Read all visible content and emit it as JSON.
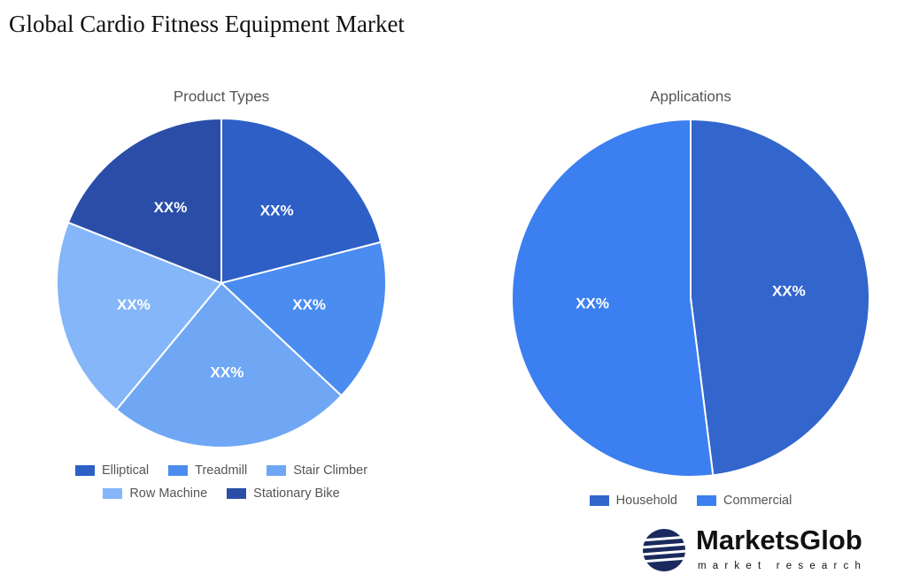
{
  "header": {
    "title": "Global Cardio Fitness Equipment Market"
  },
  "chart_data": [
    {
      "type": "pie",
      "title": "Product Types",
      "categories": [
        "Elliptical",
        "Treadmill",
        "Stair Climber",
        "Row Machine",
        "Stationary Bike"
      ],
      "values": [
        21,
        16,
        24,
        20,
        19
      ],
      "value_labels": [
        "XX%",
        "XX%",
        "XX%",
        "XX%",
        "XX%"
      ],
      "colors": [
        "#2d5fc6",
        "#4a8cf0",
        "#6fa7f5",
        "#84b6f9",
        "#2a4ea8"
      ]
    },
    {
      "type": "pie",
      "title": "Applications",
      "categories": [
        "Household",
        "Commercial"
      ],
      "values": [
        48,
        52
      ],
      "value_labels": [
        "XX%",
        "XX%"
      ],
      "colors": [
        "#3366cc",
        "#3b7ff0"
      ]
    }
  ],
  "logo": {
    "name": "MarketsGlob",
    "tagline": "market research"
  }
}
